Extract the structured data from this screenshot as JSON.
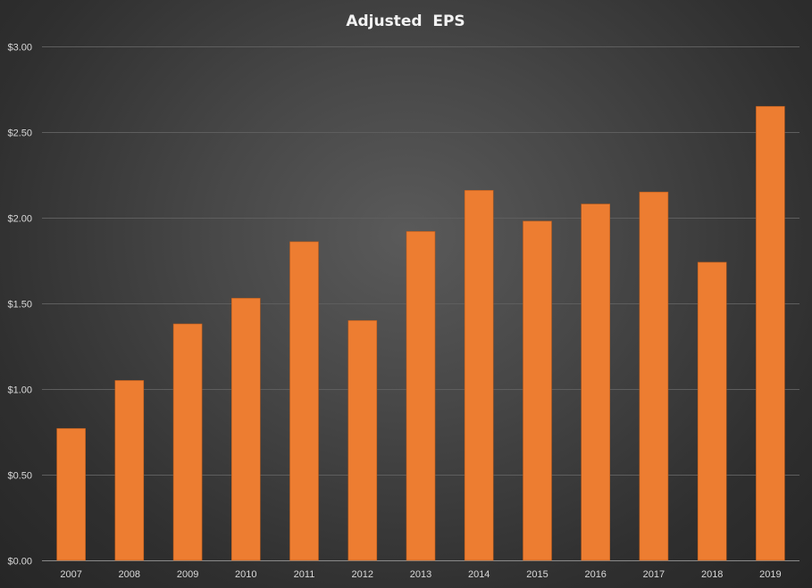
{
  "chart_data": {
    "type": "bar",
    "title": "Adjusted  EPS",
    "xlabel": "",
    "ylabel": "",
    "categories": [
      "2007",
      "2008",
      "2009",
      "2010",
      "2011",
      "2012",
      "2013",
      "2014",
      "2015",
      "2016",
      "2017",
      "2018",
      "2019"
    ],
    "values": [
      0.77,
      1.05,
      1.38,
      1.53,
      1.86,
      1.4,
      1.92,
      2.16,
      1.98,
      2.08,
      2.15,
      1.74,
      2.65
    ],
    "ylim": [
      0,
      3.0
    ],
    "yticks": [
      0,
      0.5,
      1.0,
      1.5,
      2.0,
      2.5,
      3.0
    ],
    "ytick_labels": [
      "$0.00",
      "$0.50",
      "$1.00",
      "$1.50",
      "$2.00",
      "$2.50",
      "$3.00"
    ],
    "grid": true,
    "legend": "none",
    "colors": {
      "bar": "#ed7d31",
      "bar_outline": "#b85a1c",
      "text": "#d9d9d9",
      "title": "#f2f2f2",
      "gridline": "#5e5e5e"
    }
  }
}
